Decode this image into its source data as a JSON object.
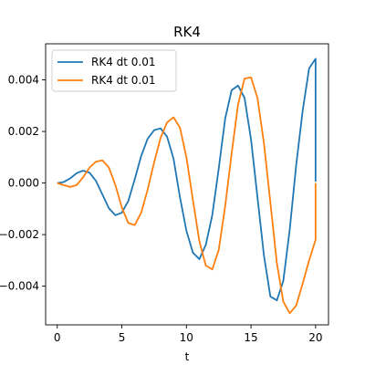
{
  "chart_data": {
    "type": "line",
    "title": "RK4",
    "xlabel": "t",
    "ylabel": "",
    "xlim": [
      -0.9,
      21.0
    ],
    "ylim": [
      -0.0055,
      0.0054
    ],
    "xticks": [
      0,
      5,
      10,
      15,
      20
    ],
    "xtick_labels": [
      "0",
      "5",
      "10",
      "15",
      "20"
    ],
    "yticks": [
      -0.004,
      -0.002,
      0.0,
      0.002,
      0.004
    ],
    "ytick_labels": [
      "−0.004",
      "−0.002",
      "0.000",
      "0.002",
      "0.004"
    ],
    "legend_position": "top-left",
    "grid": false,
    "series": [
      {
        "name": "RK4 dt 0.01",
        "color": "#1f77b4",
        "x": [
          0.0,
          0.5,
          1.0,
          1.5,
          2.0,
          2.5,
          3.0,
          3.5,
          4.0,
          4.5,
          5.0,
          5.5,
          6.0,
          6.5,
          7.0,
          7.5,
          8.0,
          8.5,
          9.0,
          9.5,
          10.0,
          10.5,
          11.0,
          11.5,
          12.0,
          12.5,
          13.0,
          13.5,
          14.0,
          14.5,
          15.0,
          15.5,
          16.0,
          16.5,
          17.0,
          17.5,
          18.0,
          18.5,
          19.0,
          19.5,
          20.0,
          20.0
        ],
        "y": [
          0.0,
          4e-05,
          0.00018,
          0.00038,
          0.00048,
          0.0004,
          8e-05,
          -0.00045,
          -0.00098,
          -0.00125,
          -0.00115,
          -0.0007,
          0.00015,
          0.00105,
          0.00172,
          0.00205,
          0.00212,
          0.0018,
          0.00095,
          -0.00055,
          -0.00185,
          -0.0027,
          -0.00295,
          -0.0024,
          -0.00125,
          0.00055,
          0.0025,
          0.0036,
          0.00378,
          0.0033,
          0.0017,
          -0.00055,
          -0.0028,
          -0.0044,
          -0.00455,
          -0.0038,
          -0.0018,
          0.0007,
          0.0028,
          0.00445,
          0.00482,
          5e-05
        ]
      },
      {
        "name": "RK4 dt 0.01",
        "color": "#ff7f0e",
        "x": [
          0.0,
          0.5,
          1.0,
          1.5,
          2.0,
          2.5,
          3.0,
          3.5,
          4.0,
          4.5,
          5.0,
          5.5,
          6.0,
          6.5,
          7.0,
          7.5,
          8.0,
          8.5,
          9.0,
          9.5,
          10.0,
          10.5,
          11.0,
          11.5,
          12.0,
          12.5,
          13.0,
          13.5,
          14.0,
          14.5,
          15.0,
          15.5,
          16.0,
          16.5,
          17.0,
          17.5,
          18.0,
          18.5,
          19.0,
          19.5,
          20.0,
          20.0
        ],
        "y": [
          0.0,
          -8e-05,
          -0.00015,
          -8e-05,
          0.00022,
          0.0006,
          0.00083,
          0.00088,
          0.0006,
          -8e-05,
          -0.00095,
          -0.00155,
          -0.00163,
          -0.00115,
          -0.00025,
          0.0008,
          0.00175,
          0.00235,
          0.00255,
          0.00215,
          0.001,
          -0.00065,
          -0.00225,
          -0.0032,
          -0.00335,
          -0.0026,
          -0.0009,
          0.00115,
          0.00305,
          0.00405,
          0.0041,
          0.0033,
          0.00155,
          -0.00075,
          -0.0031,
          -0.0046,
          -0.00505,
          -0.00475,
          -0.0039,
          -0.003,
          -0.0022,
          0.0
        ]
      }
    ]
  }
}
